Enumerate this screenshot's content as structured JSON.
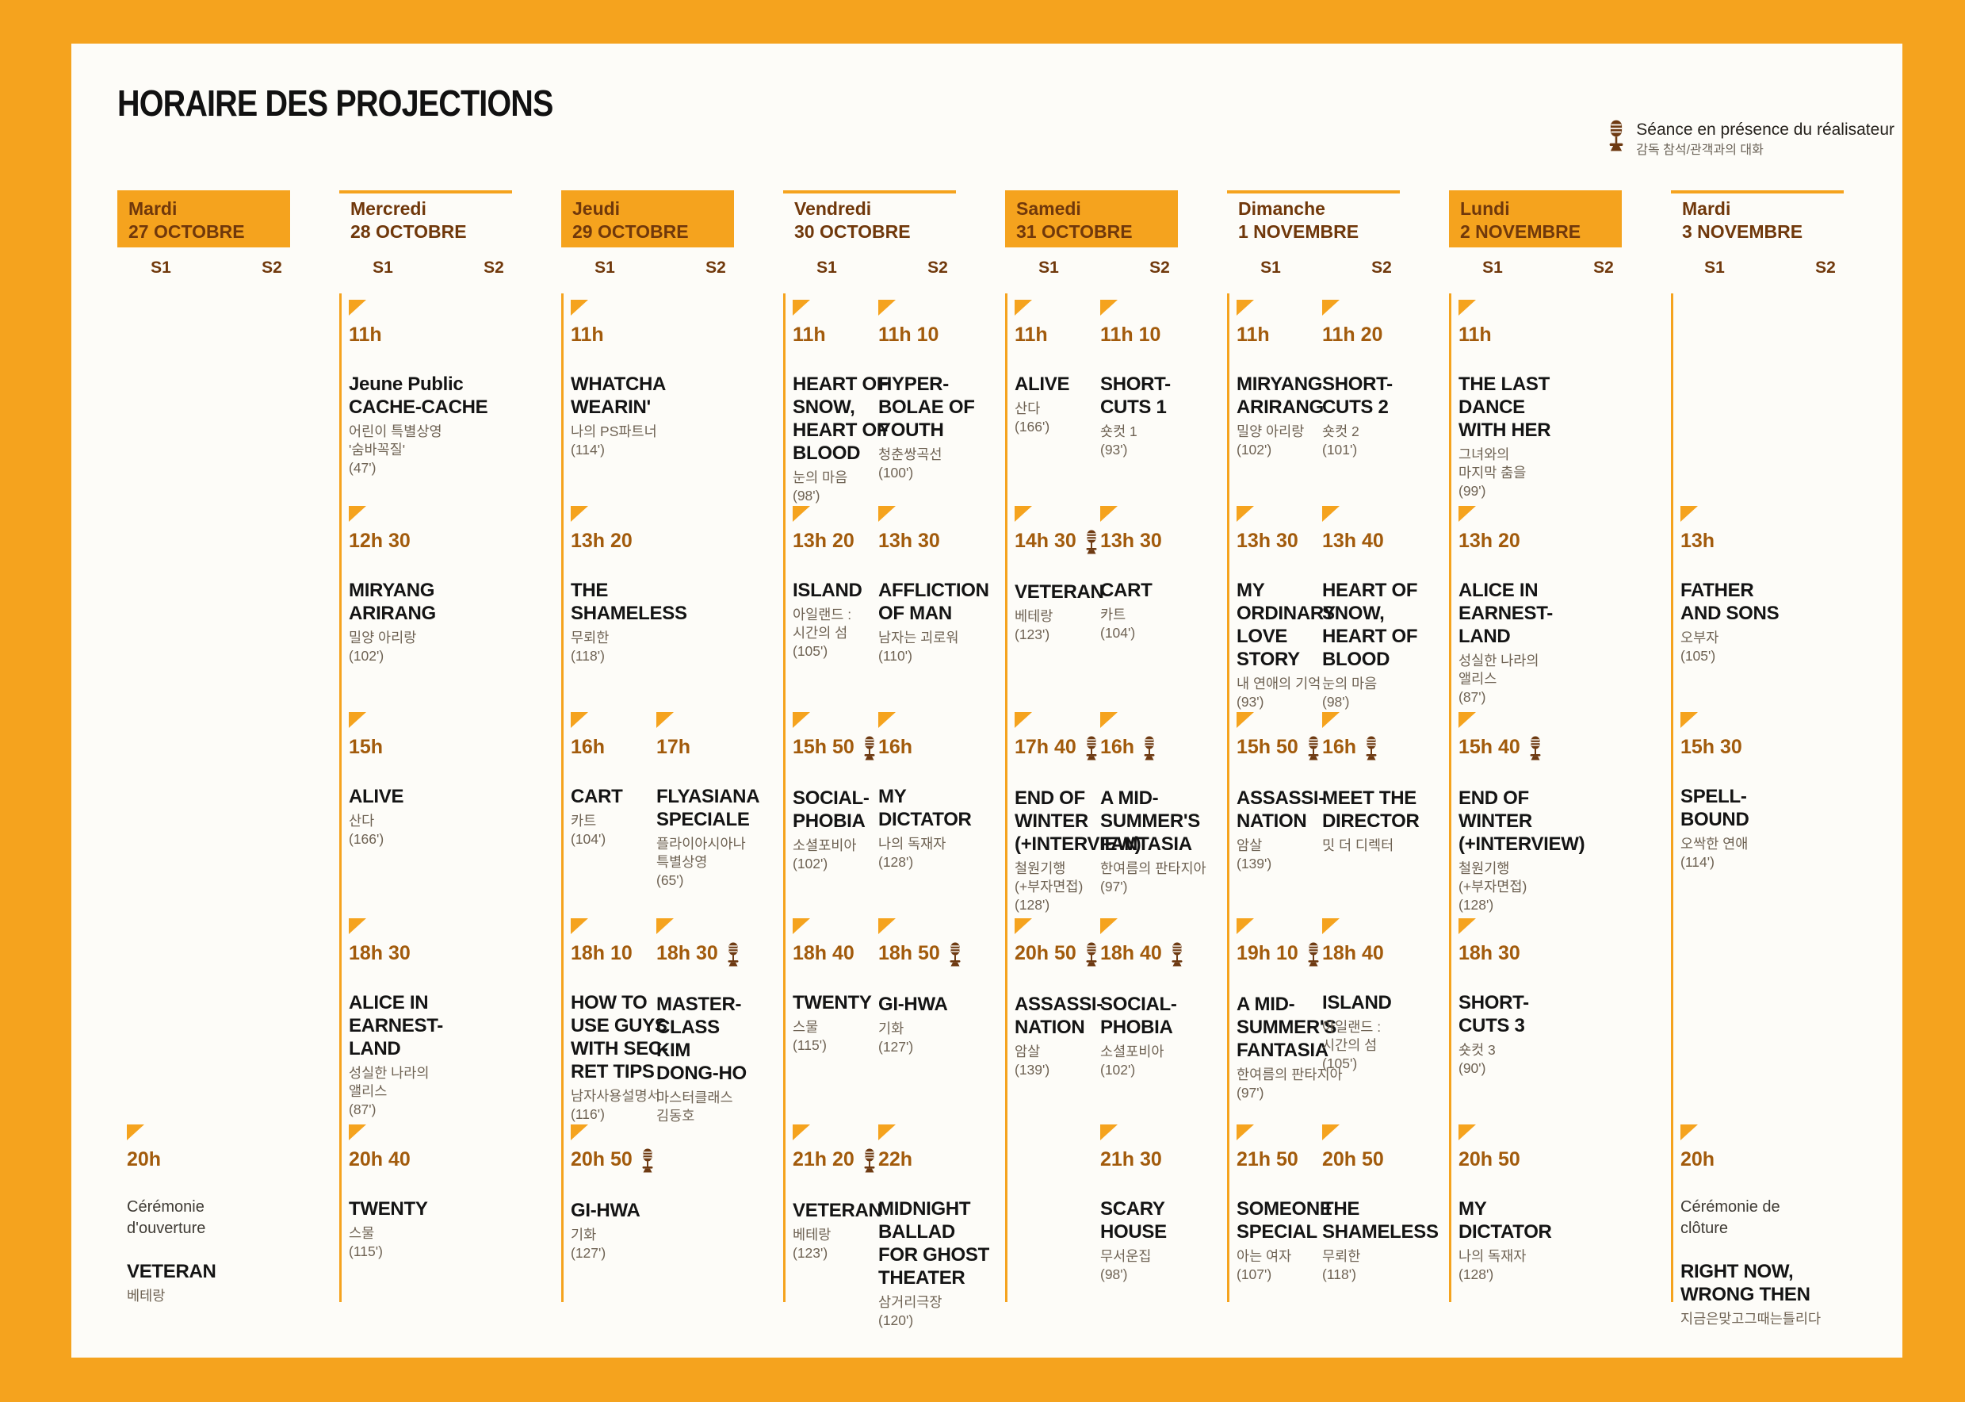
{
  "title": "HORAIRE DES PROJECTIONS",
  "legend": {
    "label": "Séance en présence du réalisateur",
    "label_ko": "감독 참석/관객과의 대화",
    "icon": "microphone-icon"
  },
  "screen_labels": [
    "S1",
    "S2"
  ],
  "colors": {
    "orange": "#F5A31E",
    "header_text_brown": "#70380B",
    "time_brown": "#A25B0C",
    "title_black": "#141414",
    "korean_gray": "#6E6253",
    "mic_brown": "#6E3A12",
    "panel_white": "#FDFCF8"
  },
  "days": [
    {
      "name": "Mardi",
      "date": "27 OCTOBRE",
      "accent": true,
      "cells": [
        {
          "row": 5,
          "screen": 0,
          "time": "20h",
          "mic": false,
          "note": [
            "Cérémonie",
            "d'ouverture"
          ],
          "title": [
            "VETERAN"
          ],
          "korean": [
            "베테랑"
          ],
          "duration": ""
        }
      ]
    },
    {
      "name": "Mercredi",
      "date": "28 OCTOBRE",
      "accent": false,
      "cells": [
        {
          "row": 1,
          "screen": 0,
          "time": "11h",
          "mic": false,
          "title": [
            "Jeune Public",
            "CACHE-CACHE"
          ],
          "korean": [
            "어린이 특별상영",
            "'숨바꼭질'"
          ],
          "duration": "(47')"
        },
        {
          "row": 2,
          "screen": 0,
          "time": "12h 30",
          "mic": false,
          "title": [
            "MIRYANG",
            "ARIRANG"
          ],
          "korean": [
            "밀양 아리랑"
          ],
          "duration": "(102')"
        },
        {
          "row": 3,
          "screen": 0,
          "time": "15h",
          "mic": false,
          "title": [
            "ALIVE"
          ],
          "korean": [
            "산다"
          ],
          "duration": "(166')"
        },
        {
          "row": 4,
          "screen": 0,
          "time": "18h 30",
          "mic": false,
          "title": [
            "ALICE IN",
            "EARNEST-",
            "LAND"
          ],
          "korean": [
            "성실한 나라의",
            "앨리스"
          ],
          "duration": "(87')"
        },
        {
          "row": 5,
          "screen": 0,
          "time": "20h 40",
          "mic": false,
          "title": [
            "TWENTY"
          ],
          "korean": [
            "스물"
          ],
          "duration": "(115')"
        }
      ]
    },
    {
      "name": "Jeudi",
      "date": "29 OCTOBRE",
      "accent": true,
      "cells": [
        {
          "row": 1,
          "screen": 0,
          "time": "11h",
          "mic": false,
          "title": [
            "WHATCHA",
            "WEARIN'"
          ],
          "korean": [
            "나의 PS파트너"
          ],
          "duration": "(114')"
        },
        {
          "row": 2,
          "screen": 0,
          "time": "13h 20",
          "mic": false,
          "title": [
            "THE",
            "SHAMELESS"
          ],
          "korean": [
            "무뢰한"
          ],
          "duration": "(118')"
        },
        {
          "row": 3,
          "screen": 0,
          "time": "16h",
          "mic": false,
          "title": [
            "CART"
          ],
          "korean": [
            "카트"
          ],
          "duration": "(104')"
        },
        {
          "row": 3,
          "screen": 1,
          "time": "17h",
          "mic": false,
          "title": [
            "FLYASIANA",
            "SPECIALE"
          ],
          "korean": [
            "플라이아시아나",
            "특별상영"
          ],
          "duration": "(65')"
        },
        {
          "row": 4,
          "screen": 0,
          "time": "18h 10",
          "mic": false,
          "title": [
            "HOW TO",
            "USE GUYS",
            "WITH SEC-",
            "RET TIPS"
          ],
          "korean": [
            "남자사용설명서"
          ],
          "duration": "(116')"
        },
        {
          "row": 4,
          "screen": 1,
          "time": "18h 30",
          "mic": true,
          "title": [
            "MASTER-",
            "CLASS",
            "KIM",
            "DONG-HO"
          ],
          "korean": [
            "마스터클래스",
            "김동호"
          ],
          "duration": ""
        },
        {
          "row": 5,
          "screen": 0,
          "time": "20h 50",
          "mic": true,
          "title": [
            "GI-HWA"
          ],
          "korean": [
            "기화"
          ],
          "duration": "(127')"
        }
      ]
    },
    {
      "name": "Vendredi",
      "date": "30 OCTOBRE",
      "accent": false,
      "cells": [
        {
          "row": 1,
          "screen": 0,
          "time": "11h",
          "mic": false,
          "title": [
            "HEART OF",
            "SNOW,",
            "HEART OF",
            "BLOOD"
          ],
          "korean": [
            "눈의 마음"
          ],
          "duration": "(98')"
        },
        {
          "row": 1,
          "screen": 1,
          "time": "11h 10",
          "mic": false,
          "title": [
            "HYPER-",
            "BOLAE OF",
            "YOUTH"
          ],
          "korean": [
            "청춘쌍곡선"
          ],
          "duration": "(100')"
        },
        {
          "row": 2,
          "screen": 0,
          "time": "13h 20",
          "mic": false,
          "title": [
            "ISLAND"
          ],
          "korean": [
            "아일랜드 :",
            "시간의 섬"
          ],
          "duration": "(105')"
        },
        {
          "row": 2,
          "screen": 1,
          "time": "13h 30",
          "mic": false,
          "title": [
            "AFFLICTION",
            "OF MAN"
          ],
          "korean": [
            "남자는 괴로워"
          ],
          "duration": "(110')"
        },
        {
          "row": 3,
          "screen": 0,
          "time": "15h 50",
          "mic": true,
          "title": [
            "SOCIAL-",
            "PHOBIA"
          ],
          "korean": [
            "소셜포비아"
          ],
          "duration": "(102')"
        },
        {
          "row": 3,
          "screen": 1,
          "time": "16h",
          "mic": false,
          "title": [
            "MY",
            "DICTATOR"
          ],
          "korean": [
            "나의 독재자"
          ],
          "duration": "(128')"
        },
        {
          "row": 4,
          "screen": 0,
          "time": "18h 40",
          "mic": false,
          "title": [
            "TWENTY"
          ],
          "korean": [
            "스물"
          ],
          "duration": "(115')"
        },
        {
          "row": 4,
          "screen": 1,
          "time": "18h 50",
          "mic": true,
          "title": [
            "GI-HWA"
          ],
          "korean": [
            "기화"
          ],
          "duration": "(127')"
        },
        {
          "row": 5,
          "screen": 0,
          "time": "21h 20",
          "mic": true,
          "title": [
            "VETERAN"
          ],
          "korean": [
            "베테랑"
          ],
          "duration": "(123')"
        },
        {
          "row": 5,
          "screen": 1,
          "time": "22h",
          "mic": false,
          "title": [
            "MIDNIGHT",
            "BALLAD",
            "FOR GHOST",
            "THEATER"
          ],
          "korean": [
            "삼거리극장"
          ],
          "duration": "(120')"
        }
      ]
    },
    {
      "name": "Samedi",
      "date": "31 OCTOBRE",
      "accent": true,
      "cells": [
        {
          "row": 1,
          "screen": 0,
          "time": "11h",
          "mic": false,
          "title": [
            "ALIVE"
          ],
          "korean": [
            "산다"
          ],
          "duration": "(166')"
        },
        {
          "row": 1,
          "screen": 1,
          "time": "11h 10",
          "mic": false,
          "title": [
            "SHORT-",
            "CUTS 1"
          ],
          "korean": [
            "숏컷 1"
          ],
          "duration": "(93')"
        },
        {
          "row": 2,
          "screen": 0,
          "time": "14h 30",
          "mic": true,
          "title": [
            "VETERAN"
          ],
          "korean": [
            "베테랑"
          ],
          "duration": "(123')"
        },
        {
          "row": 2,
          "screen": 1,
          "time": "13h 30",
          "mic": false,
          "title": [
            "CART"
          ],
          "korean": [
            "카트"
          ],
          "duration": "(104')"
        },
        {
          "row": 3,
          "screen": 0,
          "time": "17h 40",
          "mic": true,
          "title": [
            "END OF",
            "WINTER",
            "(+INTERVIEW)"
          ],
          "korean": [
            "철원기행",
            "(+부자면접)"
          ],
          "duration": "(128')"
        },
        {
          "row": 3,
          "screen": 1,
          "time": "16h",
          "mic": true,
          "title": [
            "A MID-",
            "SUMMER'S",
            "FANTASIA"
          ],
          "korean": [
            "한여름의 판타지아"
          ],
          "duration": "(97')"
        },
        {
          "row": 4,
          "screen": 0,
          "time": "20h 50",
          "mic": true,
          "title": [
            "ASSASSI-",
            "NATION"
          ],
          "korean": [
            "암살"
          ],
          "duration": "(139')"
        },
        {
          "row": 4,
          "screen": 1,
          "time": "18h 40",
          "mic": true,
          "title": [
            "SOCIAL-",
            "PHOBIA"
          ],
          "korean": [
            "소셜포비아"
          ],
          "duration": "(102')"
        },
        {
          "row": 5,
          "screen": 1,
          "time": "21h 30",
          "mic": false,
          "title": [
            "SCARY",
            "HOUSE"
          ],
          "korean": [
            "무서운집"
          ],
          "duration": "(98')"
        }
      ]
    },
    {
      "name": "Dimanche",
      "date": "1 NOVEMBRE",
      "accent": false,
      "cells": [
        {
          "row": 1,
          "screen": 0,
          "time": "11h",
          "mic": false,
          "title": [
            "MIRYANG",
            "ARIRANG"
          ],
          "korean": [
            "밀양 아리랑"
          ],
          "duration": "(102')"
        },
        {
          "row": 1,
          "screen": 1,
          "time": "11h 20",
          "mic": false,
          "title": [
            "SHORT-",
            "CUTS 2"
          ],
          "korean": [
            "숏컷 2"
          ],
          "duration": "(101')"
        },
        {
          "row": 2,
          "screen": 0,
          "time": "13h 30",
          "mic": false,
          "title": [
            "MY",
            "ORDINARY",
            "LOVE",
            "STORY"
          ],
          "korean": [
            "내 연애의 기억"
          ],
          "duration": "(93')"
        },
        {
          "row": 2,
          "screen": 1,
          "time": "13h 40",
          "mic": false,
          "title": [
            "HEART OF",
            "SNOW,",
            "HEART OF",
            "BLOOD"
          ],
          "korean": [
            "눈의 마음"
          ],
          "duration": "(98')"
        },
        {
          "row": 3,
          "screen": 0,
          "time": "15h 50",
          "mic": true,
          "title": [
            "ASSASSI-",
            "NATION"
          ],
          "korean": [
            "암살"
          ],
          "duration": "(139')"
        },
        {
          "row": 3,
          "screen": 1,
          "time": "16h",
          "mic": true,
          "title": [
            "MEET THE",
            "DIRECTOR"
          ],
          "korean": [
            "밋 더 디렉터"
          ],
          "duration": ""
        },
        {
          "row": 4,
          "screen": 0,
          "time": "19h 10",
          "mic": true,
          "title": [
            "A MID-",
            "SUMMER'S",
            "FANTASIA"
          ],
          "korean": [
            "한여름의 판타지아"
          ],
          "duration": "(97')"
        },
        {
          "row": 4,
          "screen": 1,
          "time": "18h 40",
          "mic": false,
          "title": [
            "ISLAND"
          ],
          "korean": [
            "아일랜드 :",
            "시간의 섬"
          ],
          "duration": "(105')"
        },
        {
          "row": 5,
          "screen": 0,
          "time": "21h 50",
          "mic": false,
          "title": [
            "SOMEONE",
            "SPECIAL"
          ],
          "korean": [
            "아는 여자"
          ],
          "duration": "(107')"
        },
        {
          "row": 5,
          "screen": 1,
          "time": "20h 50",
          "mic": false,
          "title": [
            "THE",
            "SHAMELESS"
          ],
          "korean": [
            "무뢰한"
          ],
          "duration": "(118')"
        }
      ]
    },
    {
      "name": "Lundi",
      "date": "2 NOVEMBRE",
      "accent": true,
      "cells": [
        {
          "row": 1,
          "screen": 0,
          "time": "11h",
          "mic": false,
          "title": [
            "THE LAST",
            "DANCE",
            "WITH HER"
          ],
          "korean": [
            "그녀와의",
            "마지막 춤을"
          ],
          "duration": "(99')"
        },
        {
          "row": 2,
          "screen": 0,
          "time": "13h 20",
          "mic": false,
          "title": [
            "ALICE IN",
            "EARNEST-",
            "LAND"
          ],
          "korean": [
            "성실한 나라의",
            "앨리스"
          ],
          "duration": "(87')"
        },
        {
          "row": 3,
          "screen": 0,
          "time": "15h 40",
          "mic": true,
          "title": [
            "END OF",
            "WINTER",
            "(+INTERVIEW)"
          ],
          "korean": [
            "철원기행",
            "(+부자면접)"
          ],
          "duration": "(128')"
        },
        {
          "row": 4,
          "screen": 0,
          "time": "18h 30",
          "mic": false,
          "title": [
            "SHORT-",
            "CUTS 3"
          ],
          "korean": [
            "숏컷 3"
          ],
          "duration": "(90')"
        },
        {
          "row": 5,
          "screen": 0,
          "time": "20h 50",
          "mic": false,
          "title": [
            "MY",
            "DICTATOR"
          ],
          "korean": [
            "나의 독재자"
          ],
          "duration": "(128')"
        }
      ]
    },
    {
      "name": "Mardi",
      "date": "3 NOVEMBRE",
      "accent": false,
      "cells": [
        {
          "row": 2,
          "screen": 0,
          "time": "13h",
          "mic": false,
          "title": [
            "FATHER",
            "AND SONS"
          ],
          "korean": [
            "오부자"
          ],
          "duration": "(105')"
        },
        {
          "row": 3,
          "screen": 0,
          "time": "15h 30",
          "mic": false,
          "title": [
            "SPELL-",
            "BOUND"
          ],
          "korean": [
            "오싹한 연애"
          ],
          "duration": "(114')"
        },
        {
          "row": 5,
          "screen": 0,
          "time": "20h",
          "mic": false,
          "note": [
            "Cérémonie de",
            "clôture"
          ],
          "title": [
            "RIGHT NOW,",
            "WRONG THEN"
          ],
          "korean": [
            "지금은맞고그때는틀리다"
          ],
          "duration": ""
        }
      ]
    }
  ]
}
